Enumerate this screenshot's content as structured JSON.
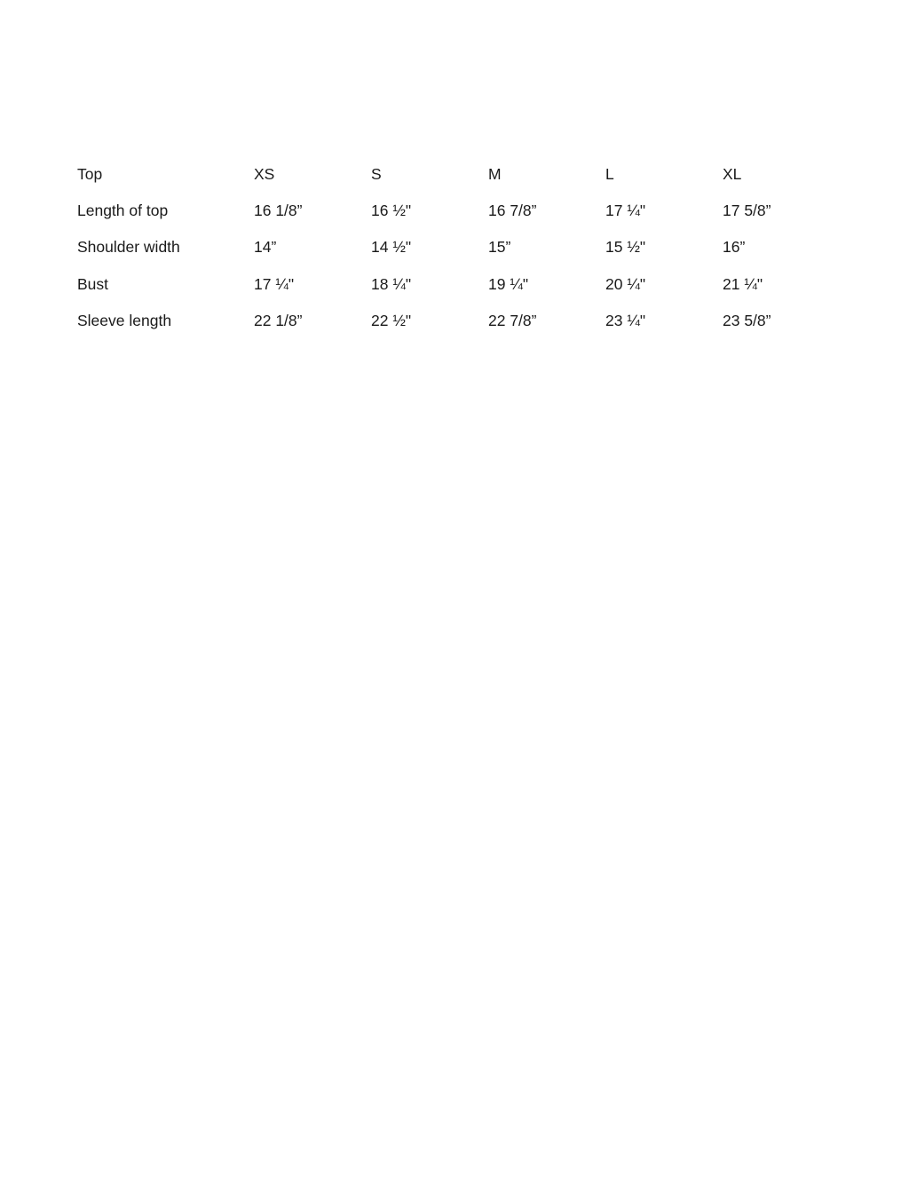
{
  "table": {
    "header": [
      "Top",
      "XS",
      "S",
      "M",
      "L",
      "XL"
    ],
    "rows": [
      [
        "Length of top",
        "16 1/8”",
        "16 ½\"",
        "16 7/8”",
        "17 ¼\"",
        "17 5/8”"
      ],
      [
        "Shoulder width",
        "14”",
        "14 ½\"",
        "15”",
        "15 ½\"",
        "16”"
      ],
      [
        "Bust",
        "17 ¼\"",
        "18 ¼\"",
        "19 ¼\"",
        "20 ¼\"",
        "21 ¼\""
      ],
      [
        "Sleeve length",
        "22 1/8”",
        "22 ½\"",
        "22 7/8”",
        "23 ¼\"",
        "23 5/8”"
      ]
    ]
  }
}
